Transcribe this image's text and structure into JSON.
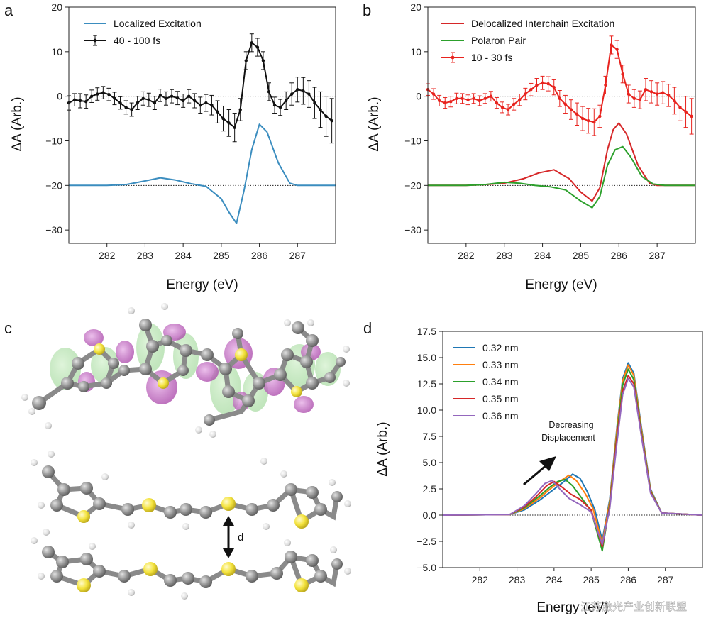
{
  "figure": {
    "panel_labels": [
      "a",
      "b",
      "c",
      "d"
    ],
    "bond_label": "d",
    "annotation": [
      "Decreasing",
      "Displacement"
    ],
    "watermark": "江苏激光产业创新联盟",
    "colors": {
      "localized": "#3b8dbf",
      "data_black": "#111111",
      "delocalized": "#d62728",
      "polaron": "#2ca02c",
      "d_032": "#1f77b4",
      "d_033": "#ff7f0e",
      "d_034": "#2ca02c",
      "d_035": "#d62728",
      "d_036": "#9467bd",
      "sulfur": "#f4e33d",
      "carbon": "#8e8e8e",
      "hydrogen": "#e6e6e6",
      "orbital_green": "#9fd89a",
      "orbital_magenta": "#b94fb9"
    }
  },
  "chart_data": [
    {
      "id": "a",
      "type": "line",
      "xlabel": "Energy (eV)",
      "ylabel": "ΔA (Arb.)",
      "xlim": [
        281.0,
        288.0
      ],
      "ylim": [
        -33,
        20
      ],
      "xticks": [
        282,
        283,
        284,
        285,
        286,
        287
      ],
      "yticks": [
        -30,
        -20,
        -10,
        0,
        10,
        20
      ],
      "reference_lines": [
        0,
        -20
      ],
      "series": [
        {
          "name": "Localized Excitation",
          "color": "#3b8dbf",
          "x": [
            281.0,
            282.0,
            282.5,
            283.0,
            283.4,
            283.8,
            284.2,
            284.6,
            285.0,
            285.2,
            285.4,
            285.6,
            285.8,
            286.0,
            286.2,
            286.5,
            286.8,
            287.0,
            288.0
          ],
          "y": [
            -20,
            -20,
            -19.8,
            -19,
            -18.3,
            -18.8,
            -19.6,
            -20.2,
            -23,
            -26,
            -28.5,
            -21,
            -12,
            -6.3,
            -8,
            -15,
            -19.5,
            -20,
            -20
          ]
        },
        {
          "name": "40 - 100 fs",
          "color": "#111111",
          "x": [
            281.0,
            281.15,
            281.3,
            281.45,
            281.6,
            281.75,
            281.9,
            282.05,
            282.2,
            282.35,
            282.5,
            282.65,
            282.8,
            282.95,
            283.1,
            283.25,
            283.4,
            283.55,
            283.7,
            283.85,
            284.0,
            284.15,
            284.3,
            284.45,
            284.6,
            284.75,
            284.9,
            285.05,
            285.2,
            285.35,
            285.5,
            285.65,
            285.8,
            285.95,
            286.1,
            286.25,
            286.4,
            286.55,
            286.7,
            286.85,
            287.0,
            287.15,
            287.3,
            287.45,
            287.6,
            287.75,
            287.9
          ],
          "y": [
            -1.5,
            -0.8,
            -1.0,
            -1.2,
            0.0,
            0.5,
            0.8,
            0.4,
            -0.5,
            -1.5,
            -2.5,
            -3.0,
            -1.5,
            -0.5,
            -0.8,
            -1.5,
            0.2,
            -0.5,
            0.0,
            -0.4,
            -1.0,
            0.0,
            -1.0,
            -2.0,
            -1.5,
            -2.0,
            -3.5,
            -5.0,
            -6.0,
            -7.0,
            -3.0,
            8.0,
            12.0,
            11.0,
            8.0,
            1.0,
            -2.0,
            -2.5,
            -1.0,
            0.5,
            1.5,
            1.2,
            0.5,
            -1.5,
            -3.0,
            -4.5,
            -5.5
          ],
          "err": [
            1.6,
            1.4,
            1.6,
            1.5,
            1.4,
            1.4,
            1.4,
            1.4,
            1.4,
            1.4,
            1.5,
            1.5,
            1.5,
            1.5,
            1.5,
            1.5,
            1.4,
            1.5,
            1.5,
            1.5,
            1.5,
            1.5,
            1.6,
            1.8,
            1.9,
            2.2,
            2.5,
            2.8,
            3.0,
            3.2,
            2.5,
            2.0,
            2.0,
            2.0,
            2.0,
            2.0,
            1.8,
            1.8,
            2.0,
            2.5,
            2.8,
            3.0,
            3.0,
            3.5,
            4.0,
            4.5,
            5.0
          ]
        }
      ]
    },
    {
      "id": "b",
      "type": "line",
      "xlabel": "Energy (eV)",
      "ylabel": "ΔA (Arb.)",
      "xlim": [
        281.0,
        288.0
      ],
      "ylim": [
        -33,
        20
      ],
      "xticks": [
        282,
        283,
        284,
        285,
        286,
        287
      ],
      "yticks": [
        -30,
        -20,
        -10,
        0,
        10,
        20
      ],
      "reference_lines": [
        0,
        -20
      ],
      "series": [
        {
          "name": "Delocalized Interchain Excitation",
          "color": "#d62728",
          "x": [
            281.0,
            282.0,
            282.5,
            283.0,
            283.5,
            283.9,
            284.3,
            284.7,
            285.0,
            285.3,
            285.5,
            285.7,
            285.85,
            286.0,
            286.2,
            286.5,
            286.8,
            287.0,
            288.0
          ],
          "y": [
            -20,
            -20,
            -19.8,
            -19.5,
            -18.5,
            -17.2,
            -16.5,
            -18.5,
            -21.5,
            -23.5,
            -20.5,
            -12,
            -7.5,
            -6,
            -8.5,
            -15.5,
            -19.5,
            -20,
            -20
          ]
        },
        {
          "name": "Polaron Pair",
          "color": "#2ca02c",
          "x": [
            281.0,
            282.0,
            282.5,
            283.0,
            283.4,
            283.8,
            284.2,
            284.6,
            285.0,
            285.3,
            285.5,
            285.7,
            285.9,
            286.1,
            286.3,
            286.6,
            286.9,
            287.2,
            288.0
          ],
          "y": [
            -20,
            -20,
            -19.8,
            -19.3,
            -19.5,
            -20,
            -20.3,
            -21,
            -23.5,
            -25,
            -22.5,
            -15.5,
            -12,
            -11.3,
            -13.5,
            -18,
            -19.7,
            -20,
            -20
          ]
        },
        {
          "name": "10 - 30 fs",
          "color": "#e8231e",
          "x": [
            281.0,
            281.15,
            281.3,
            281.45,
            281.6,
            281.75,
            281.9,
            282.05,
            282.2,
            282.35,
            282.5,
            282.65,
            282.8,
            282.95,
            283.1,
            283.25,
            283.4,
            283.55,
            283.7,
            283.85,
            284.0,
            284.15,
            284.3,
            284.45,
            284.6,
            284.75,
            284.9,
            285.05,
            285.2,
            285.35,
            285.5,
            285.65,
            285.8,
            285.95,
            286.1,
            286.25,
            286.4,
            286.55,
            286.7,
            286.85,
            287.0,
            287.15,
            287.3,
            287.45,
            287.6,
            287.75,
            287.9
          ],
          "y": [
            1.5,
            0.5,
            -1.0,
            -1.5,
            -1.2,
            -0.5,
            -0.5,
            -0.8,
            -0.5,
            -1.0,
            -0.5,
            0.0,
            -1.5,
            -2.5,
            -3.0,
            -1.8,
            -0.8,
            0.5,
            1.5,
            2.5,
            3.0,
            2.8,
            2.0,
            -0.5,
            -1.8,
            -3.0,
            -4.0,
            -5.0,
            -5.5,
            -5.8,
            -4.5,
            2.5,
            11.5,
            10.5,
            5.0,
            0.5,
            -0.5,
            -0.8,
            1.5,
            1.0,
            0.5,
            0.8,
            0.2,
            -1.0,
            -2.5,
            -3.5,
            -4.5
          ],
          "err": [
            1.3,
            1.2,
            1.2,
            1.2,
            1.2,
            1.2,
            1.1,
            1.1,
            1.1,
            1.1,
            1.1,
            1.1,
            1.2,
            1.2,
            1.2,
            1.3,
            1.3,
            1.3,
            1.4,
            1.5,
            1.5,
            1.6,
            1.7,
            1.8,
            2.0,
            2.2,
            2.5,
            2.7,
            2.8,
            3.0,
            2.5,
            2.0,
            2.0,
            2.0,
            2.0,
            2.0,
            2.0,
            2.0,
            2.5,
            2.5,
            2.5,
            2.5,
            2.5,
            3.0,
            3.0,
            3.5,
            4.0
          ]
        }
      ]
    },
    {
      "id": "d",
      "type": "line",
      "xlabel": "Energy (eV)",
      "ylabel": "ΔA (Arb.)",
      "xlim": [
        281.0,
        288.0
      ],
      "ylim": [
        -5.0,
        17.5
      ],
      "xticks": [
        282,
        283,
        284,
        285,
        286,
        287
      ],
      "yticks": [
        -5.0,
        -2.5,
        0.0,
        2.5,
        5.0,
        7.5,
        10.0,
        12.5,
        15.0,
        17.5
      ],
      "ytick_labels": [
        "−5.0",
        "−2.5",
        "0.0",
        "2.5",
        "5.0",
        "7.5",
        "10.0",
        "12.5",
        "15.0",
        "17.5"
      ],
      "reference_lines": [
        0
      ],
      "series": [
        {
          "name": "0.32 nm",
          "color": "#1f77b4",
          "x": [
            281.0,
            282.8,
            283.2,
            283.6,
            283.9,
            284.2,
            284.5,
            284.7,
            284.9,
            285.1,
            285.3,
            285.5,
            285.7,
            285.85,
            286.0,
            286.15,
            286.35,
            286.6,
            286.9,
            288.0
          ],
          "y": [
            0,
            0.05,
            0.5,
            1.4,
            2.2,
            3.0,
            3.9,
            3.5,
            2.2,
            0.5,
            -2.4,
            1.5,
            8.5,
            13.0,
            14.5,
            13.5,
            8.5,
            2.5,
            0.2,
            0
          ]
        },
        {
          "name": "0.33 nm",
          "color": "#ff7f0e",
          "x": [
            281.0,
            282.8,
            283.2,
            283.6,
            283.9,
            284.15,
            284.4,
            284.6,
            284.85,
            285.05,
            285.3,
            285.5,
            285.7,
            285.85,
            286.0,
            286.15,
            286.35,
            286.6,
            286.9,
            288.0
          ],
          "y": [
            0,
            0.05,
            0.6,
            1.6,
            2.5,
            3.2,
            3.8,
            3.3,
            2.0,
            0.6,
            -2.7,
            1.3,
            8.3,
            12.8,
            14.3,
            13.3,
            8.3,
            2.4,
            0.2,
            0
          ]
        },
        {
          "name": "0.34 nm",
          "color": "#2ca02c",
          "x": [
            281.0,
            282.8,
            283.2,
            283.6,
            283.9,
            284.1,
            284.3,
            284.5,
            284.75,
            285.0,
            285.3,
            285.5,
            285.7,
            285.85,
            286.0,
            286.15,
            286.35,
            286.6,
            286.9,
            288.0
          ],
          "y": [
            0,
            0.05,
            0.7,
            1.8,
            2.7,
            3.2,
            3.4,
            2.8,
            1.6,
            0.4,
            -3.4,
            1.0,
            7.8,
            12.4,
            13.9,
            12.9,
            8.0,
            2.3,
            0.2,
            0
          ]
        },
        {
          "name": "0.35 nm",
          "color": "#d62728",
          "x": [
            281.0,
            282.8,
            283.2,
            283.5,
            283.8,
            284.0,
            284.2,
            284.45,
            284.7,
            285.0,
            285.3,
            285.5,
            285.7,
            285.85,
            286.0,
            286.15,
            286.35,
            286.6,
            286.9,
            288.0
          ],
          "y": [
            0,
            0.05,
            0.8,
            1.7,
            2.8,
            3.2,
            2.7,
            2.0,
            1.5,
            0.5,
            -3.0,
            0.8,
            7.5,
            11.8,
            13.3,
            12.5,
            7.8,
            2.2,
            0.2,
            0
          ]
        },
        {
          "name": "0.36 nm",
          "color": "#9467bd",
          "x": [
            281.0,
            282.8,
            283.2,
            283.5,
            283.75,
            283.95,
            284.15,
            284.4,
            284.7,
            285.0,
            285.3,
            285.5,
            285.7,
            285.85,
            286.0,
            286.15,
            286.35,
            286.6,
            286.9,
            288.0
          ],
          "y": [
            0,
            0.05,
            0.9,
            2.0,
            3.0,
            3.3,
            2.5,
            1.6,
            1.0,
            0.3,
            -2.8,
            0.6,
            7.0,
            11.5,
            13.0,
            12.2,
            7.6,
            2.1,
            0.2,
            0
          ]
        }
      ]
    }
  ]
}
